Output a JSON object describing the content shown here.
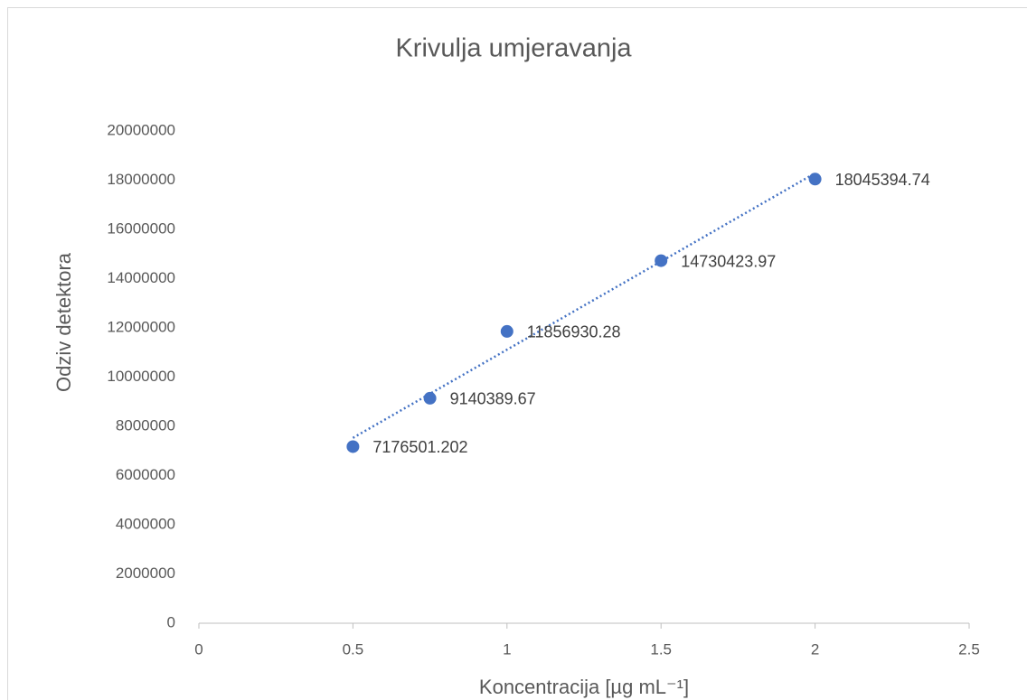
{
  "chart_data": {
    "type": "scatter",
    "title": "Krivulja umjeravanja",
    "x_label": "Koncentracija [µg mL⁻¹]",
    "y_label": "Odziv detektora",
    "series": [
      {
        "name": "Odziv detektora",
        "color": "#4472c4",
        "x": [
          0.5,
          0.75,
          1,
          1.5,
          2
        ],
        "values": [
          7176501.202,
          9140389.67,
          11856930.28,
          14730423.97,
          18045394.74
        ]
      }
    ],
    "trendline": "linear",
    "xlim": [
      0,
      2.5
    ],
    "xticks": [
      0,
      0.5,
      1,
      1.5,
      2,
      2.5
    ],
    "ylim": [
      0,
      20000000
    ],
    "yticks": [
      0,
      2000000,
      4000000,
      6000000,
      8000000,
      10000000,
      12000000,
      14000000,
      16000000,
      18000000,
      20000000
    ],
    "grid": false
  }
}
